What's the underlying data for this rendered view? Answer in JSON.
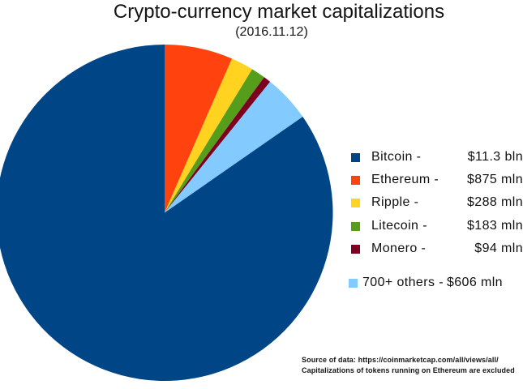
{
  "title": "Crypto-currency market capitalizations",
  "subtitle": "(2016.11.12)",
  "legend": {
    "items": [
      {
        "label": "Bitcoin -",
        "value": "$11.3 bln",
        "color": "#004586"
      },
      {
        "label": "Ethereum -",
        "value": "$875 mln",
        "color": "#FF420E"
      },
      {
        "label": "Ripple -",
        "value": "$288 mln",
        "color": "#FFD320"
      },
      {
        "label": "Litecoin -",
        "value": "$183 mln",
        "color": "#579D1C"
      },
      {
        "label": "Monero -",
        "value": "$94 mln",
        "color": "#7E0021"
      }
    ],
    "others": {
      "label": "700+ others -",
      "value": "$606 mln",
      "color": "#83CAFF"
    }
  },
  "footnote": {
    "line1": "Source of data: https://coinmarketcap.com/all/views/all/",
    "line2": "Capitalizations of tokens running on Ethereum are excluded"
  },
  "chart_data": {
    "type": "pie",
    "title": "Crypto-currency market capitalizations",
    "subtitle": "(2016.11.12)",
    "categories": [
      "Bitcoin",
      "Ethereum",
      "Ripple",
      "Litecoin",
      "Monero",
      "700+ others"
    ],
    "values_usd_mln": [
      11300,
      875,
      288,
      183,
      94,
      606
    ],
    "value_labels": [
      "$11.3 bln",
      "$875 mln",
      "$288 mln",
      "$183 mln",
      "$94 mln",
      "$606 mln"
    ],
    "colors": [
      "#004586",
      "#FF420E",
      "#FFD320",
      "#579D1C",
      "#7E0021",
      "#83CAFF"
    ],
    "start_angle": "12-o-clock",
    "direction": "clockwise",
    "draw_order": [
      1,
      2,
      3,
      4,
      5,
      0
    ],
    "legend_position": "right",
    "grid": false
  }
}
